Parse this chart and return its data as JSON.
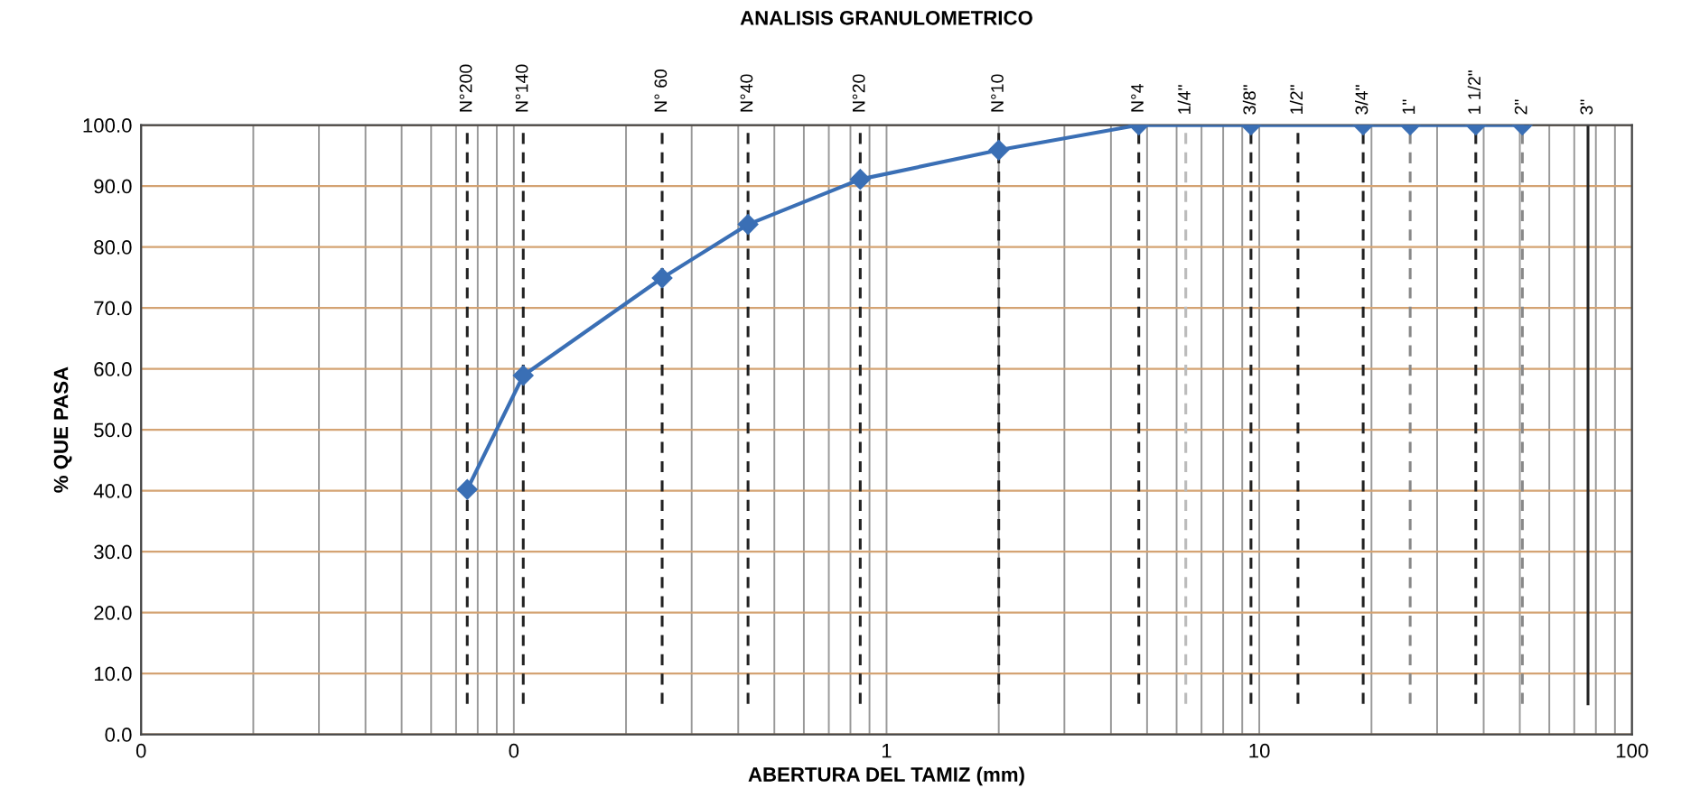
{
  "chart_data": {
    "type": "line",
    "title": "ANALISIS GRANULOMETRICO",
    "xlabel": "ABERTURA DEL TAMIZ (mm)",
    "ylabel": "% QUE PASA",
    "log": "x",
    "x": [
      0.075,
      0.106,
      0.25,
      0.425,
      0.85,
      2.0,
      4.75,
      9.5,
      19.0,
      25.4,
      38.1,
      50.8
    ],
    "values": [
      40.2,
      58.9,
      74.9,
      83.7,
      91.1,
      95.9,
      100,
      100,
      100,
      100,
      100,
      100
    ],
    "color": "#3a6fb5",
    "marker": "diamond",
    "line_style": "solid",
    "grid": true,
    "xlim": [
      0.01,
      100
    ],
    "xticks": [
      {
        "value": 0.01,
        "label": "0"
      },
      {
        "value": 0.1,
        "label": "0"
      },
      1,
      10,
      100
    ],
    "ylim": [
      0,
      100
    ],
    "yticks": [
      {
        "value": 0,
        "label": "0.0"
      },
      {
        "value": 10,
        "label": "10.0"
      },
      {
        "value": 20,
        "label": "20.0"
      },
      {
        "value": 30,
        "label": "30.0"
      },
      {
        "value": 40,
        "label": "40.0"
      },
      {
        "value": 50,
        "label": "50.0"
      },
      {
        "value": 60,
        "label": "60.0"
      },
      {
        "value": 70,
        "label": "70.0"
      },
      {
        "value": 80,
        "label": "80.0"
      },
      {
        "value": 90,
        "label": "90.0"
      },
      {
        "value": 100,
        "label": "100.0"
      }
    ],
    "ref_lines": [
      {
        "axis": "x",
        "value": 0.075,
        "label": "N°200",
        "line_style": "dashed",
        "color": "#222222"
      },
      {
        "axis": "x",
        "value": 0.106,
        "label": "N°140",
        "line_style": "dashed",
        "color": "#222222"
      },
      {
        "axis": "x",
        "value": 0.25,
        "label": "N° 60",
        "line_style": "dashed",
        "color": "#222222"
      },
      {
        "axis": "x",
        "value": 0.425,
        "label": "N°40",
        "line_style": "dashed",
        "color": "#222222"
      },
      {
        "axis": "x",
        "value": 0.85,
        "label": "N°20",
        "line_style": "dashed",
        "color": "#222222"
      },
      {
        "axis": "x",
        "value": 2.0,
        "label": "N°10",
        "line_style": "dashed",
        "color": "#222222"
      },
      {
        "axis": "x",
        "value": 4.75,
        "label": "N°4",
        "line_style": "dashed",
        "color": "#222222"
      },
      {
        "axis": "x",
        "value": 6.35,
        "line_style": "dashed",
        "color": "#bbbbbb"
      },
      {
        "axis": "x",
        "value": 9.5,
        "line_style": "dashed",
        "color": "#222222"
      },
      {
        "axis": "x",
        "value": 12.7,
        "line_style": "dashed",
        "color": "#222222"
      },
      {
        "axis": "x",
        "value": 19.0,
        "line_style": "dashed",
        "color": "#222222"
      },
      {
        "axis": "x",
        "value": 25.4,
        "line_style": "dashed",
        "color": "#888888"
      },
      {
        "axis": "x",
        "value": 38.1,
        "line_style": "dashed",
        "color": "#222222"
      },
      {
        "axis": "x",
        "value": 50.8,
        "line_style": "dashed",
        "color": "#888888"
      },
      {
        "axis": "x",
        "value": 76.2,
        "line_style": "solid",
        "color": "#222222"
      }
    ],
    "annotations": [
      {
        "text": "1/4\"",
        "x": 6.35,
        "y": 100
      },
      {
        "text": "3/8\"",
        "x": 9.5,
        "y": 100
      },
      {
        "text": "1/2\"",
        "x": 12.7,
        "y": 100
      },
      {
        "text": "3/4\"",
        "x": 19.0,
        "y": 100
      },
      {
        "text": "1\"",
        "x": 25.4,
        "y": 100
      },
      {
        "text": "1 1/2\"",
        "x": 38.1,
        "y": 100
      },
      {
        "text": "2\"",
        "x": 50.8,
        "y": 100
      },
      {
        "text": "3\"",
        "x": 76.2,
        "y": 100
      }
    ]
  }
}
